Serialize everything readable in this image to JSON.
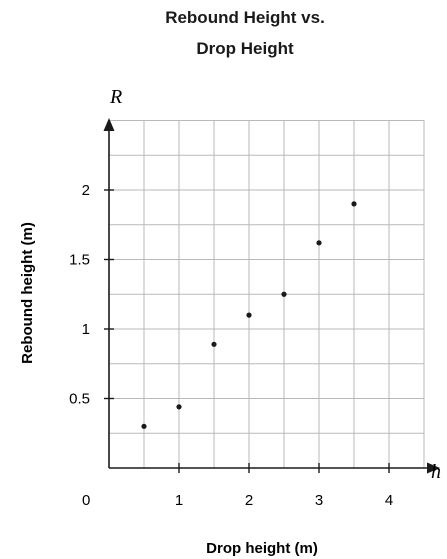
{
  "chart_data": {
    "type": "scatter",
    "title_lines": [
      "Rebound Height vs.",
      "Drop Height"
    ],
    "xlabel": "Drop height (m)",
    "ylabel": "Rebound height (m)",
    "x_var": "h",
    "y_var": "R",
    "xlim": [
      0,
      4.4
    ],
    "ylim": [
      0,
      2.5
    ],
    "grid": true,
    "origin_label": "0",
    "x_ticks": [
      {
        "value": 1,
        "label": "1"
      },
      {
        "value": 2,
        "label": "2"
      },
      {
        "value": 3,
        "label": "3"
      },
      {
        "value": 4,
        "label": "4"
      }
    ],
    "y_ticks": [
      {
        "value": 0.5,
        "label": "0.5"
      },
      {
        "value": 1,
        "label": "1"
      },
      {
        "value": 1.5,
        "label": "1.5"
      },
      {
        "value": 2,
        "label": "2"
      }
    ],
    "points": [
      {
        "x": 0.5,
        "y": 0.3
      },
      {
        "x": 1.0,
        "y": 0.44
      },
      {
        "x": 1.5,
        "y": 0.89
      },
      {
        "x": 2.0,
        "y": 1.1
      },
      {
        "x": 2.5,
        "y": 1.25
      },
      {
        "x": 3.0,
        "y": 1.62
      },
      {
        "x": 3.5,
        "y": 1.9
      }
    ]
  }
}
